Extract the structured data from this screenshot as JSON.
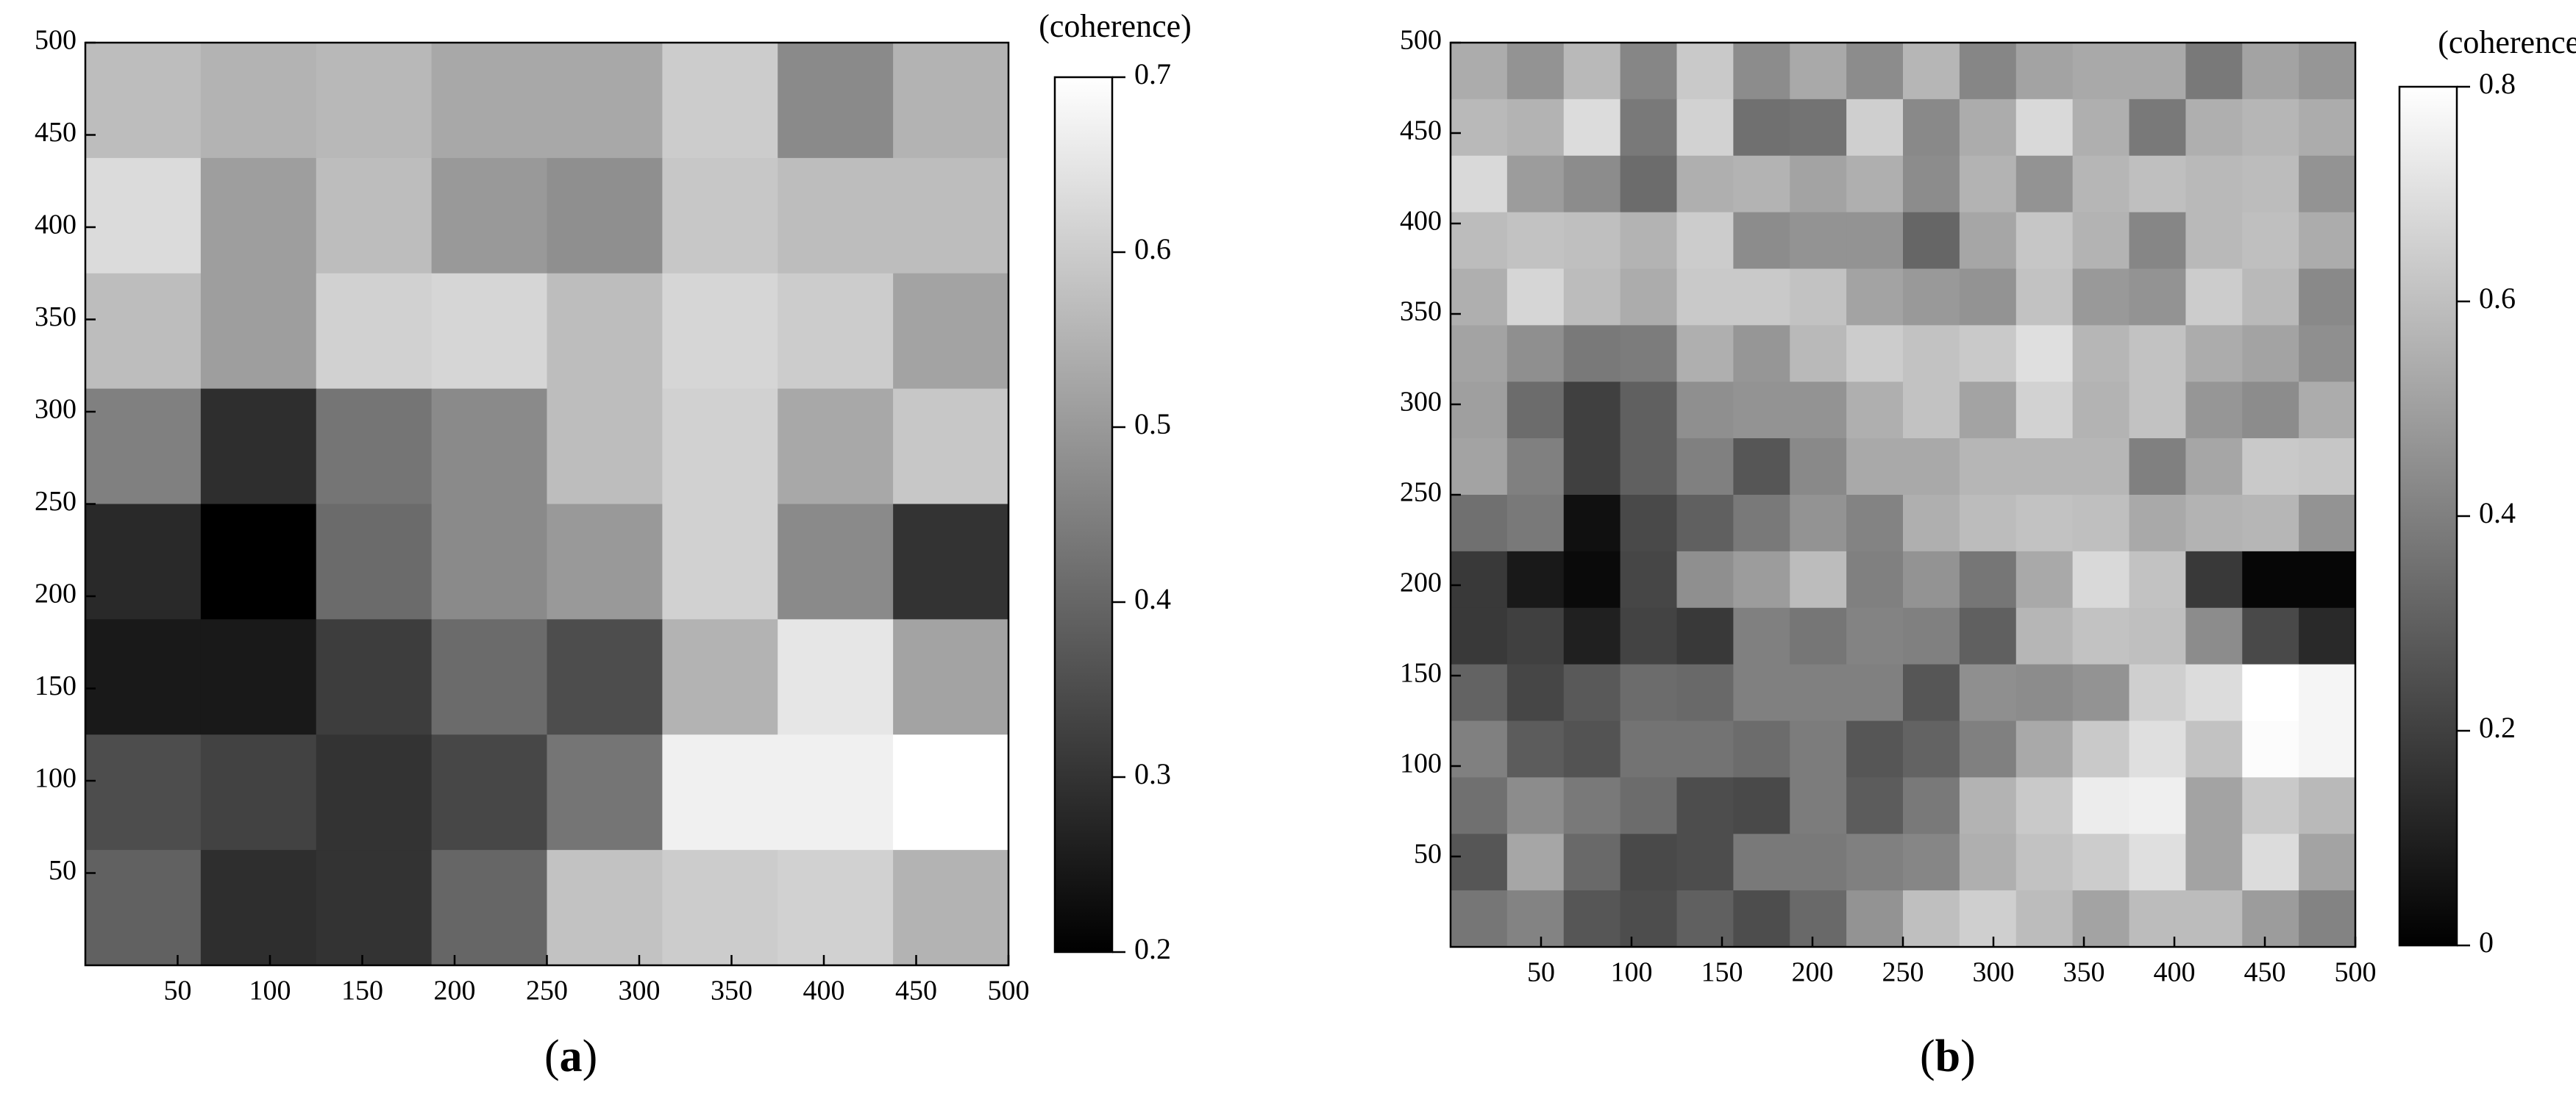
{
  "chart_data": [
    {
      "type": "heatmap",
      "panel_label": "a",
      "colorbar_title": "(coherence)",
      "colormap": [
        "#000000",
        "#ffffff"
      ],
      "x_ticks": [
        "50",
        "100",
        "150",
        "200",
        "250",
        "300",
        "350",
        "400",
        "450",
        "500"
      ],
      "y_ticks": [
        "500",
        "450",
        "400",
        "350",
        "300",
        "250",
        "200",
        "150",
        "100",
        "50"
      ],
      "xlim": [
        0,
        500
      ],
      "ylim": [
        0,
        500
      ],
      "vmin": 0.2,
      "vmax": 0.7,
      "colorbar_ticks": [
        "0.7",
        "0.6",
        "0.5",
        "0.4",
        "0.3",
        "0.2"
      ],
      "values": [
        [
          0.57,
          0.55,
          0.56,
          0.53,
          0.53,
          0.6,
          0.47,
          0.55
        ],
        [
          0.63,
          0.51,
          0.57,
          0.5,
          0.48,
          0.59,
          0.57,
          0.57
        ],
        [
          0.57,
          0.51,
          0.61,
          0.62,
          0.57,
          0.62,
          0.6,
          0.52
        ],
        [
          0.45,
          0.29,
          0.43,
          0.47,
          0.57,
          0.61,
          0.53,
          0.59
        ],
        [
          0.28,
          0.2,
          0.41,
          0.47,
          0.5,
          0.61,
          0.47,
          0.3
        ],
        [
          0.25,
          0.25,
          0.32,
          0.41,
          0.35,
          0.55,
          0.65,
          0.52
        ],
        [
          0.35,
          0.33,
          0.3,
          0.34,
          0.43,
          0.67,
          0.67,
          0.7
        ],
        [
          0.39,
          0.29,
          0.3,
          0.4,
          0.58,
          0.6,
          0.61,
          0.55
        ]
      ]
    },
    {
      "type": "heatmap",
      "panel_label": "b",
      "colorbar_title": "(coherence)",
      "colormap": [
        "#000000",
        "#ffffff"
      ],
      "x_ticks": [
        "50",
        "100",
        "150",
        "200",
        "250",
        "300",
        "350",
        "400",
        "450",
        "500"
      ],
      "y_ticks": [
        "500",
        "450",
        "400",
        "350",
        "300",
        "250",
        "200",
        "150",
        "100",
        "50"
      ],
      "xlim": [
        0,
        500
      ],
      "ylim": [
        0,
        500
      ],
      "vmin": 0,
      "vmax": 0.8,
      "colorbar_ticks": [
        "0.8",
        "0.6",
        "0.4",
        "0.2",
        "0"
      ],
      "values": [
        [
          0.54,
          0.46,
          0.58,
          0.42,
          0.63,
          0.44,
          0.53,
          0.44,
          0.57,
          0.42,
          0.51,
          0.53,
          0.53,
          0.38,
          0.51,
          0.47
        ],
        [
          0.58,
          0.56,
          0.69,
          0.38,
          0.66,
          0.35,
          0.36,
          0.65,
          0.43,
          0.54,
          0.68,
          0.55,
          0.38,
          0.55,
          0.57,
          0.54
        ],
        [
          0.68,
          0.49,
          0.44,
          0.34,
          0.55,
          0.56,
          0.51,
          0.55,
          0.44,
          0.56,
          0.46,
          0.57,
          0.6,
          0.58,
          0.59,
          0.46
        ],
        [
          0.59,
          0.61,
          0.6,
          0.56,
          0.64,
          0.44,
          0.46,
          0.46,
          0.32,
          0.52,
          0.62,
          0.56,
          0.42,
          0.58,
          0.6,
          0.54
        ],
        [
          0.55,
          0.67,
          0.59,
          0.54,
          0.63,
          0.63,
          0.61,
          0.51,
          0.48,
          0.46,
          0.61,
          0.48,
          0.46,
          0.64,
          0.58,
          0.43
        ],
        [
          0.51,
          0.45,
          0.38,
          0.39,
          0.55,
          0.47,
          0.58,
          0.64,
          0.61,
          0.63,
          0.7,
          0.57,
          0.61,
          0.54,
          0.51,
          0.45
        ],
        [
          0.5,
          0.34,
          0.2,
          0.3,
          0.45,
          0.46,
          0.46,
          0.55,
          0.61,
          0.51,
          0.66,
          0.56,
          0.61,
          0.47,
          0.44,
          0.54
        ],
        [
          0.51,
          0.4,
          0.2,
          0.3,
          0.4,
          0.27,
          0.43,
          0.53,
          0.53,
          0.57,
          0.57,
          0.57,
          0.4,
          0.52,
          0.63,
          0.62
        ],
        [
          0.35,
          0.38,
          0.05,
          0.23,
          0.3,
          0.38,
          0.46,
          0.41,
          0.55,
          0.59,
          0.61,
          0.6,
          0.53,
          0.56,
          0.57,
          0.46
        ],
        [
          0.18,
          0.08,
          0.03,
          0.22,
          0.45,
          0.49,
          0.59,
          0.4,
          0.46,
          0.37,
          0.53,
          0.68,
          0.61,
          0.18,
          0.02,
          0.02
        ],
        [
          0.18,
          0.2,
          0.1,
          0.21,
          0.18,
          0.4,
          0.37,
          0.41,
          0.4,
          0.3,
          0.57,
          0.61,
          0.6,
          0.44,
          0.23,
          0.13
        ],
        [
          0.31,
          0.22,
          0.28,
          0.34,
          0.33,
          0.4,
          0.4,
          0.4,
          0.27,
          0.45,
          0.44,
          0.46,
          0.65,
          0.69,
          0.8,
          0.77
        ],
        [
          0.4,
          0.29,
          0.26,
          0.36,
          0.36,
          0.34,
          0.39,
          0.27,
          0.31,
          0.4,
          0.53,
          0.63,
          0.7,
          0.61,
          0.79,
          0.77
        ],
        [
          0.35,
          0.44,
          0.38,
          0.34,
          0.24,
          0.23,
          0.39,
          0.29,
          0.38,
          0.56,
          0.63,
          0.74,
          0.75,
          0.51,
          0.63,
          0.58
        ],
        [
          0.27,
          0.52,
          0.33,
          0.23,
          0.24,
          0.38,
          0.38,
          0.4,
          0.42,
          0.55,
          0.61,
          0.64,
          0.7,
          0.51,
          0.69,
          0.51
        ],
        [
          0.37,
          0.41,
          0.27,
          0.24,
          0.3,
          0.24,
          0.33,
          0.46,
          0.6,
          0.65,
          0.59,
          0.51,
          0.59,
          0.59,
          0.49,
          0.41
        ]
      ]
    }
  ]
}
